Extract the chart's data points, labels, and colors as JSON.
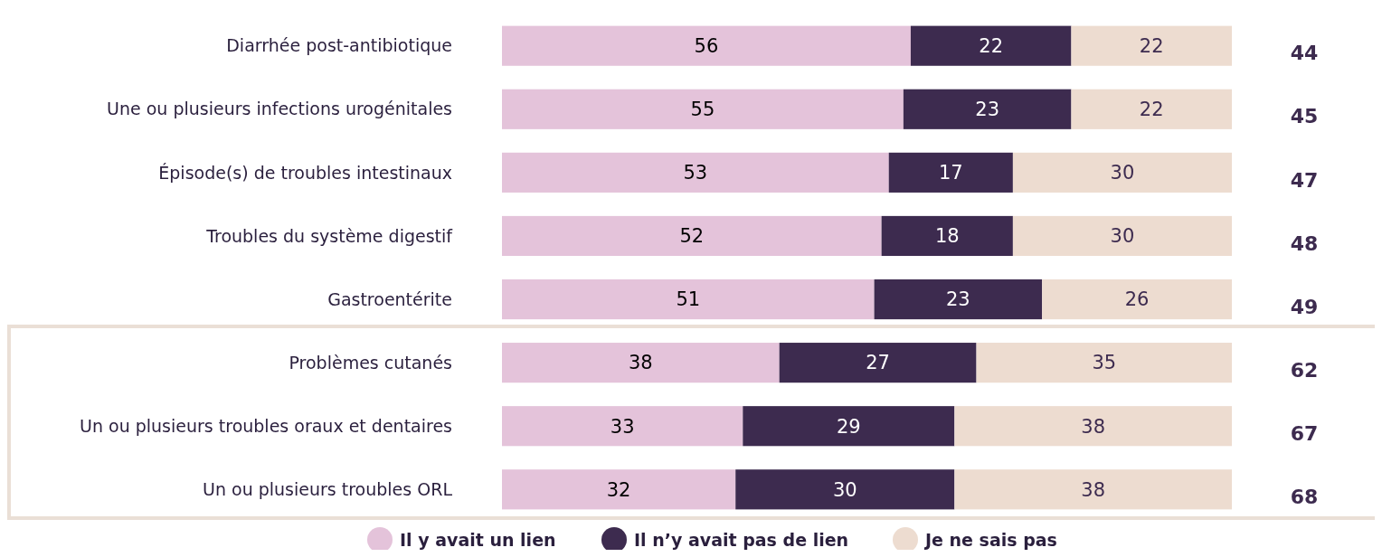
{
  "chart_data": {
    "type": "bar",
    "orientation": "horizontal",
    "stacked": true,
    "data_labels": true,
    "tick_labels": "y",
    "legend": "bottom",
    "xlim": [
      0,
      100
    ],
    "categories": [
      "Diarrhée post-antibiotique",
      "Une ou plusieurs infections urogénitales",
      "Épisode(s) de troubles intestinaux",
      "Troubles du système digestif",
      "Gastroentérite",
      "Problèmes cutanés",
      "Un ou plusieurs troubles oraux et dentaires",
      "Un ou plusieurs troubles ORL"
    ],
    "series": [
      {
        "name": "Il y avait un lien",
        "color": "#e4c3da",
        "values": [
          56,
          55,
          53,
          52,
          51,
          38,
          33,
          32
        ]
      },
      {
        "name": "Il n’y avait pas de lien",
        "color": "#3d2b4f",
        "values": [
          22,
          23,
          17,
          18,
          23,
          27,
          29,
          30
        ]
      },
      {
        "name": "Je ne sais pas",
        "color": "#eddcd0",
        "values": [
          22,
          22,
          30,
          30,
          26,
          35,
          38,
          38
        ]
      }
    ],
    "annotations": [
      "44",
      "45",
      "47",
      "48",
      "49",
      "62",
      "67",
      "68"
    ]
  }
}
